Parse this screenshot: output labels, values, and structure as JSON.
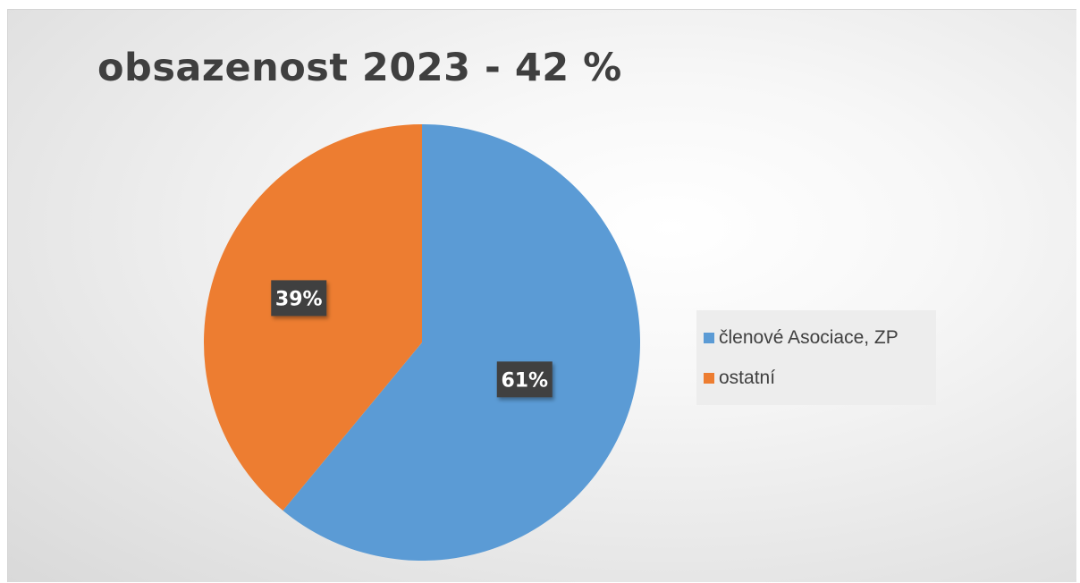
{
  "chart_data": {
    "type": "pie",
    "title": "obsazenost 2023 - 42 %",
    "categories": [
      "členové Asociace, ZP",
      "ostatní"
    ],
    "values": [
      61,
      39
    ],
    "data_labels": [
      "61%",
      "39%"
    ],
    "colors": [
      "#5b9bd5",
      "#ed7d31"
    ],
    "start_angle_deg": 0,
    "direction": "clockwise",
    "legend_position": "right",
    "label_background": "#404040"
  }
}
